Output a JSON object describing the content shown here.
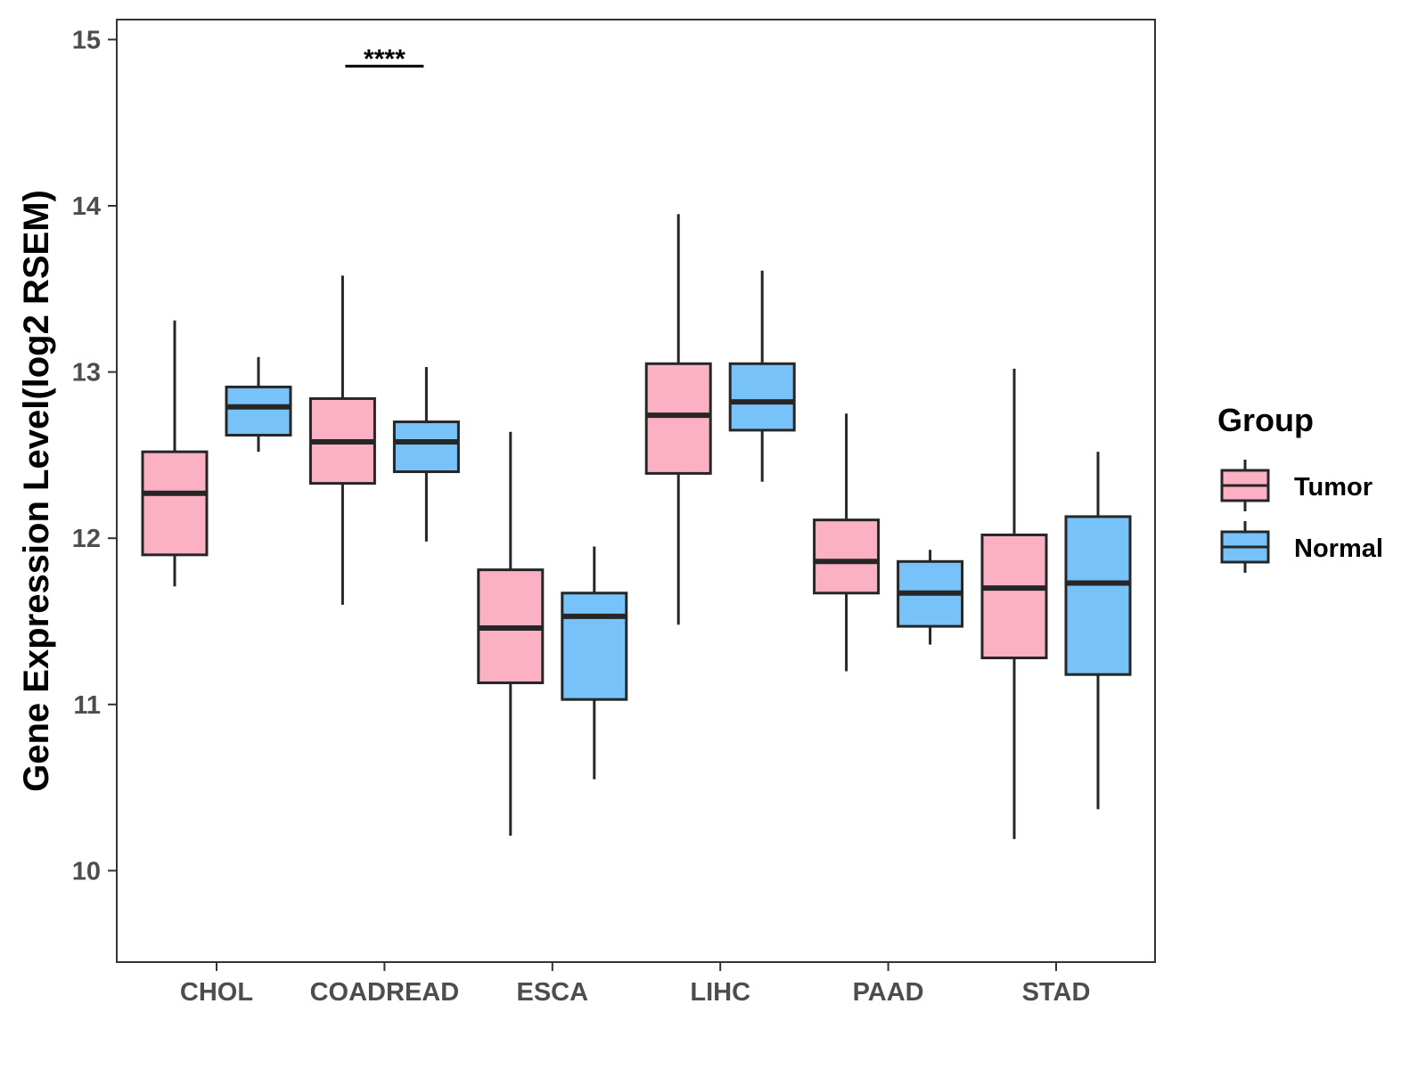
{
  "chart_data": {
    "type": "boxplot",
    "title": "",
    "xlabel": "",
    "ylabel": "Gene Expression Level(log2 RSEM)",
    "ylim": [
      9.45,
      15.12
    ],
    "yticks": [
      10,
      11,
      12,
      13,
      14,
      15
    ],
    "grid": false,
    "categories": [
      "CHOL",
      "COADREAD",
      "ESCA",
      "LIHC",
      "PAAD",
      "STAD"
    ],
    "legend": {
      "title": "Group",
      "position": "right"
    },
    "series": [
      {
        "name": "Tumor",
        "color": "#FBB1C3",
        "boxes": [
          {
            "category": "CHOL",
            "min": 11.71,
            "q1": 11.9,
            "median": 12.27,
            "q3": 12.52,
            "max": 13.31
          },
          {
            "category": "COADREAD",
            "min": 11.6,
            "q1": 12.33,
            "median": 12.58,
            "q3": 12.84,
            "max": 13.58
          },
          {
            "category": "ESCA",
            "min": 10.21,
            "q1": 11.13,
            "median": 11.46,
            "q3": 11.81,
            "max": 12.64
          },
          {
            "category": "LIHC",
            "min": 11.48,
            "q1": 12.39,
            "median": 12.74,
            "q3": 13.05,
            "max": 13.95
          },
          {
            "category": "PAAD",
            "min": 11.2,
            "q1": 11.67,
            "median": 11.86,
            "q3": 12.11,
            "max": 12.75
          },
          {
            "category": "STAD",
            "min": 10.19,
            "q1": 11.28,
            "median": 11.7,
            "q3": 12.02,
            "max": 13.02
          }
        ]
      },
      {
        "name": "Normal",
        "color": "#76C2F9",
        "boxes": [
          {
            "category": "CHOL",
            "min": 12.52,
            "q1": 12.62,
            "median": 12.79,
            "q3": 12.91,
            "max": 13.09
          },
          {
            "category": "COADREAD",
            "min": 11.98,
            "q1": 12.4,
            "median": 12.58,
            "q3": 12.7,
            "max": 13.03
          },
          {
            "category": "ESCA",
            "min": 10.55,
            "q1": 11.03,
            "median": 11.53,
            "q3": 11.67,
            "max": 11.95
          },
          {
            "category": "LIHC",
            "min": 12.34,
            "q1": 12.65,
            "median": 12.82,
            "q3": 13.05,
            "max": 13.61
          },
          {
            "category": "PAAD",
            "min": 11.36,
            "q1": 11.47,
            "median": 11.67,
            "q3": 11.86,
            "max": 11.93
          },
          {
            "category": "STAD",
            "min": 10.37,
            "q1": 11.18,
            "median": 11.73,
            "q3": 12.13,
            "max": 12.52
          }
        ]
      }
    ],
    "annotations": [
      {
        "category": "COADREAD",
        "label": "****",
        "y": 14.84
      }
    ]
  }
}
